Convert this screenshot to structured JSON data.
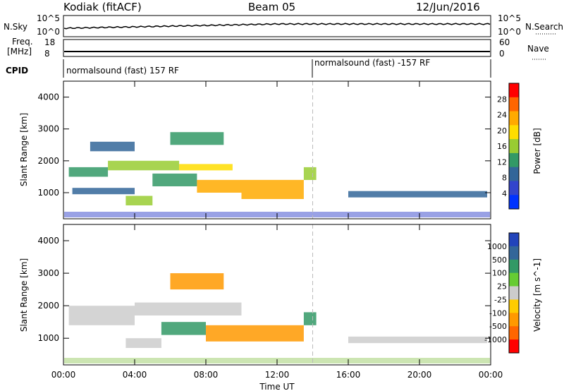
{
  "header": {
    "radar": "Kodiak (fitACF)",
    "beam": "Beam 05",
    "date": "12/Jun/2016"
  },
  "top_panels": {
    "nsky_label": "N.Sky",
    "nsky_ticks": [
      "10^5",
      "10^0"
    ],
    "nsearch_label": "N.Search",
    "nsearch_ticks": [
      "10^5",
      "10^0"
    ],
    "freq_label": "Freq.",
    "freq_unit": "[MHz]",
    "freq_ticks": [
      "18",
      "8"
    ],
    "nave_label": "Nave",
    "nave_ticks": [
      "60",
      "0"
    ],
    "cpid_label": "CPID",
    "cpid_segments": [
      {
        "start_hour": 0,
        "end_hour": 14,
        "label": "normalsound (fast) 157 RF"
      },
      {
        "start_hour": 14,
        "end_hour": 24,
        "label": "normalsound (fast) -157 RF"
      }
    ]
  },
  "chart_data": [
    {
      "type": "heatmap",
      "title": "",
      "ylabel": "Slant Range [km]",
      "xlabel": "",
      "xlim": [
        0,
        24
      ],
      "ylim": [
        180,
        4500
      ],
      "yticks": [
        1000,
        2000,
        3000,
        4000
      ],
      "colorbar": {
        "label": "Power [dB]",
        "ticks": [
          "28",
          "24",
          "20",
          "16",
          "12",
          "8",
          "4"
        ],
        "colors": [
          "#ff0000",
          "#ff6600",
          "#ffaa00",
          "#ffdd00",
          "#99cc33",
          "#339966",
          "#336699",
          "#3344cc",
          "#0033ff"
        ],
        "range": [
          0,
          30
        ]
      },
      "echo_regions": [
        {
          "x": [
            0.3,
            2.5
          ],
          "y": [
            1500,
            1800
          ],
          "value": 10
        },
        {
          "x": [
            2.5,
            6.5
          ],
          "y": [
            1700,
            2000
          ],
          "value": 14
        },
        {
          "x": [
            6.5,
            9.5
          ],
          "y": [
            1700,
            1900
          ],
          "value": 20
        },
        {
          "x": [
            3.5,
            5.0
          ],
          "y": [
            600,
            900
          ],
          "value": 16
        },
        {
          "x": [
            5.0,
            7.5
          ],
          "y": [
            1200,
            1600
          ],
          "value": 12
        },
        {
          "x": [
            7.5,
            10.0
          ],
          "y": [
            1000,
            1400
          ],
          "value": 22
        },
        {
          "x": [
            10.0,
            13.5
          ],
          "y": [
            800,
            1400
          ],
          "value": 22
        },
        {
          "x": [
            13.5,
            14.2
          ],
          "y": [
            1400,
            1800
          ],
          "value": 14
        },
        {
          "x": [
            6.0,
            9.0
          ],
          "y": [
            2500,
            2900
          ],
          "value": 10
        },
        {
          "x": [
            16.0,
            23.8
          ],
          "y": [
            850,
            1050
          ],
          "value": 7
        },
        {
          "x": [
            0.5,
            4.0
          ],
          "y": [
            950,
            1150
          ],
          "value": 6
        },
        {
          "x": [
            1.5,
            4.0
          ],
          "y": [
            2300,
            2600
          ],
          "value": 8
        }
      ]
    },
    {
      "type": "heatmap",
      "title": "",
      "ylabel": "Slant Range [km]",
      "xlabel": "Time UT",
      "xlim": [
        0,
        24
      ],
      "ylim": [
        180,
        4500
      ],
      "yticks": [
        1000,
        2000,
        3000,
        4000
      ],
      "xticks": [
        "00:00",
        "04:00",
        "08:00",
        "12:00",
        "16:00",
        "20:00",
        "00:00"
      ],
      "colorbar": {
        "label": "Velocity [m s^-1]",
        "ticks": [
          "1000",
          "500",
          "100",
          "25",
          "-25",
          "-100",
          "-500",
          "-1000"
        ],
        "colors": [
          "#2244bb",
          "#336699",
          "#339966",
          "#66cc33",
          "#cccccc",
          "#ffcc00",
          "#ff9900",
          "#ff6600",
          "#ff0000"
        ]
      },
      "echo_regions": [
        {
          "x": [
            0.3,
            4.0
          ],
          "y": [
            1400,
            2000
          ],
          "value": 0
        },
        {
          "x": [
            4.0,
            10.0
          ],
          "y": [
            1700,
            2100
          ],
          "value": 0
        },
        {
          "x": [
            5.5,
            8.0
          ],
          "y": [
            1100,
            1500
          ],
          "value": 300
        },
        {
          "x": [
            8.0,
            13.5
          ],
          "y": [
            900,
            1400
          ],
          "value": -200
        },
        {
          "x": [
            6.0,
            9.0
          ],
          "y": [
            2500,
            3000
          ],
          "value": -150
        },
        {
          "x": [
            3.5,
            5.5
          ],
          "y": [
            700,
            1000
          ],
          "value": 0
        },
        {
          "x": [
            16.0,
            23.8
          ],
          "y": [
            850,
            1050
          ],
          "value": 0
        },
        {
          "x": [
            13.5,
            14.2
          ],
          "y": [
            1400,
            1800
          ],
          "value": 200
        }
      ]
    }
  ]
}
